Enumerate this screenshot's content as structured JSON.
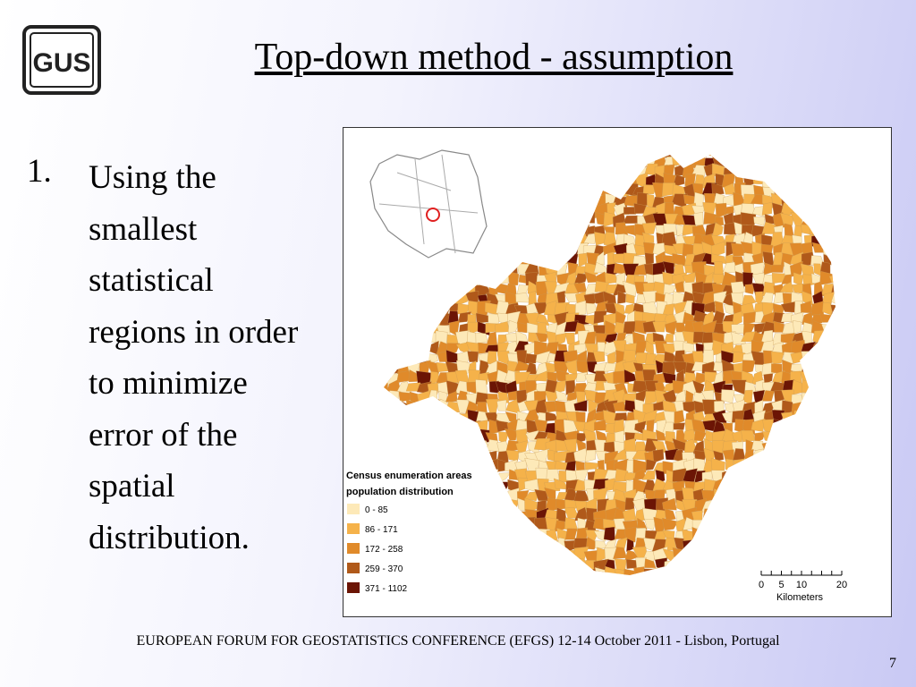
{
  "logo": "GUS",
  "title": "Top-down method - assumption",
  "list": [
    {
      "number": "1.",
      "text": "Using the smallest statistical regions in order to minimize error of the spatial distribution."
    }
  ],
  "map": {
    "legend": {
      "title": [
        "Census enumeration areas",
        "population distribution"
      ],
      "items": [
        {
          "label": "0 - 85",
          "color": "#fde9b8"
        },
        {
          "label": "86 - 171",
          "color": "#f5b24a"
        },
        {
          "label": "172 - 258",
          "color": "#e08a2a"
        },
        {
          "label": "259 - 370",
          "color": "#b0591a"
        },
        {
          "label": "371 - 1102",
          "color": "#6b1505"
        }
      ]
    },
    "scale": {
      "ticks": [
        "0",
        "5",
        "10",
        "20"
      ],
      "unit": "Kilometers"
    }
  },
  "footer": "EUROPEAN FORUM FOR GEOSTATISTICS CONFERENCE (EFGS) 12-14 October 2011 - Lisbon, Portugal",
  "page_number": "7"
}
